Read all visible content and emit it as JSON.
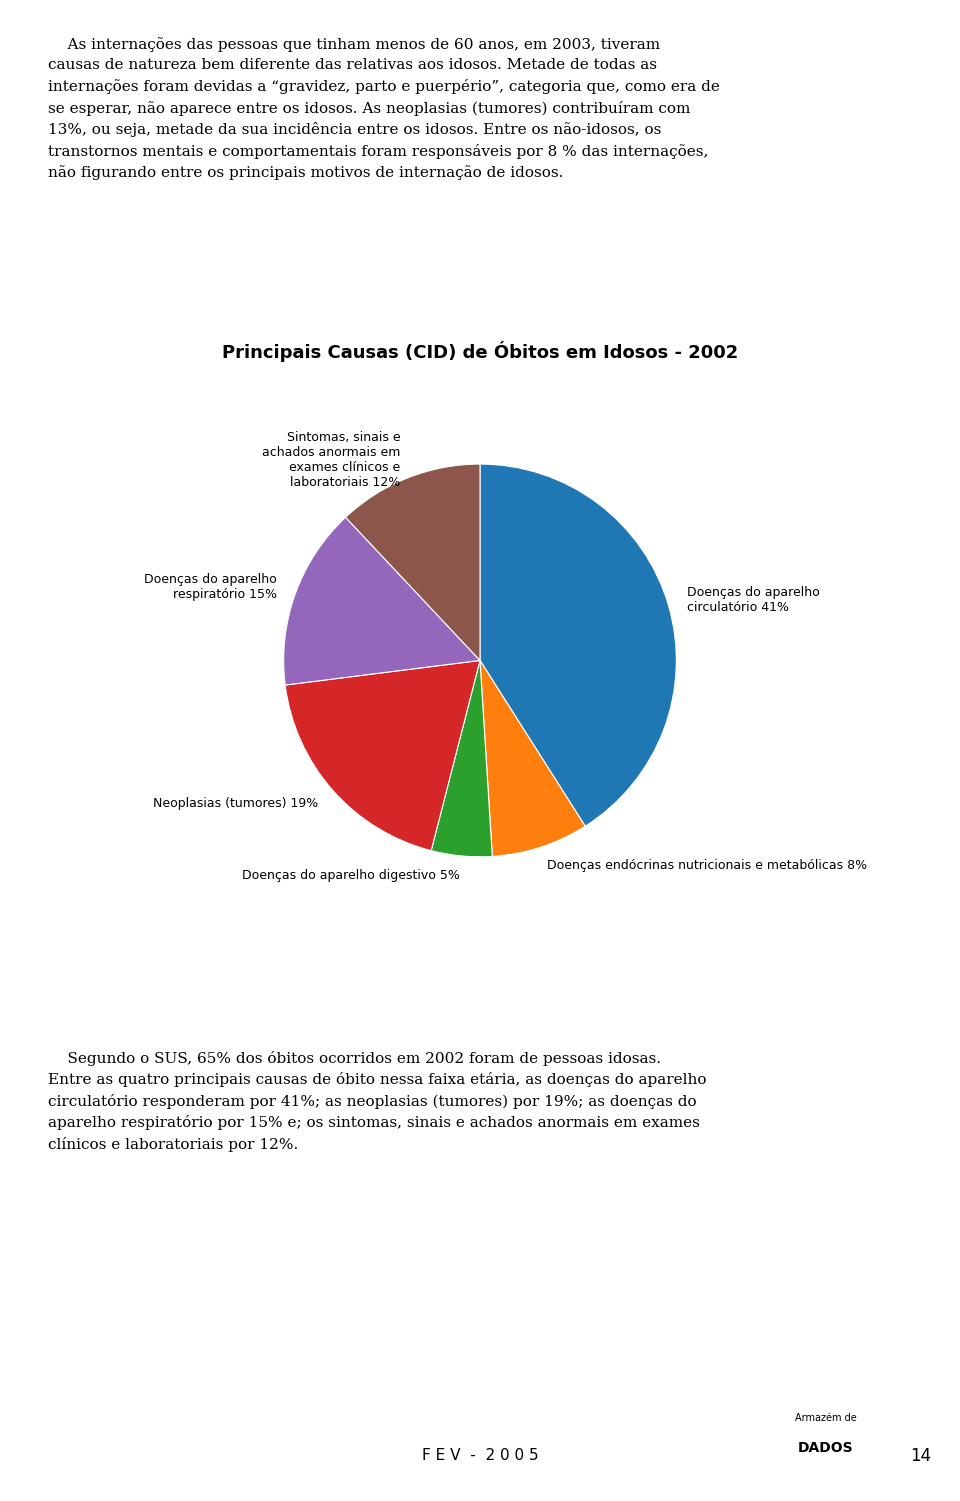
{
  "chart_data": {
    "type": "pie",
    "title": "Principais Causas (CID) de Óbitos em Idosos - 2002",
    "categories": [
      "Doenças do aparelho\ncirculatório 41%",
      "Doenças endócrinas nutricionais e metabólicas 8%",
      "Doenças do aparelho digestivo 5%",
      "Neoplasias (tumores) 19%",
      "Doenças do aparelho\nrespiratório 15%",
      "Sintomas, sinais e\nachados anormais em\nexames clínicos e\nlaboratoriais 12%"
    ],
    "values": [
      41,
      8,
      5,
      19,
      15,
      12
    ],
    "annotations": [
      "    As internações das pessoas que tinham menos de 60 anos, em 2003, tiveram\ncausas de natureza bem diferente das relativas aos idosos. Metade de todas as\ninternações foram devidas a “gravidez, parto e puerpério”, categoria que, como era de\nse esperar, não aparece entre os idosos. As neoplasias (tumores) contribuíram com\n13%, ou seja, metade da sua incidência entre os idosos. Entre os não-idosos, os\ntranstornos mentais e comportamentais foram responsáveis por 8 % das internações,\nnão figurando entre os principais motivos de internação de idosos.",
      "    Segundo o SUS, 65% dos óbitos ocorridos em 2002 foram de pessoas idosas.\nEntre as quatro principais causas de óbito nessa faixa etária, as doenças do aparelho\ncirculatório responderam por 41%; as neoplasias (tumores) por 19%; as doenças do\naparelho respiratório por 15% e; os sintomas, sinais e achados anormais em exames\nclínicos e laboratoriais por 12%.",
      "F E V  -  2 0 0 5",
      "14",
      "Armazém de",
      "DADOS"
    ]
  }
}
